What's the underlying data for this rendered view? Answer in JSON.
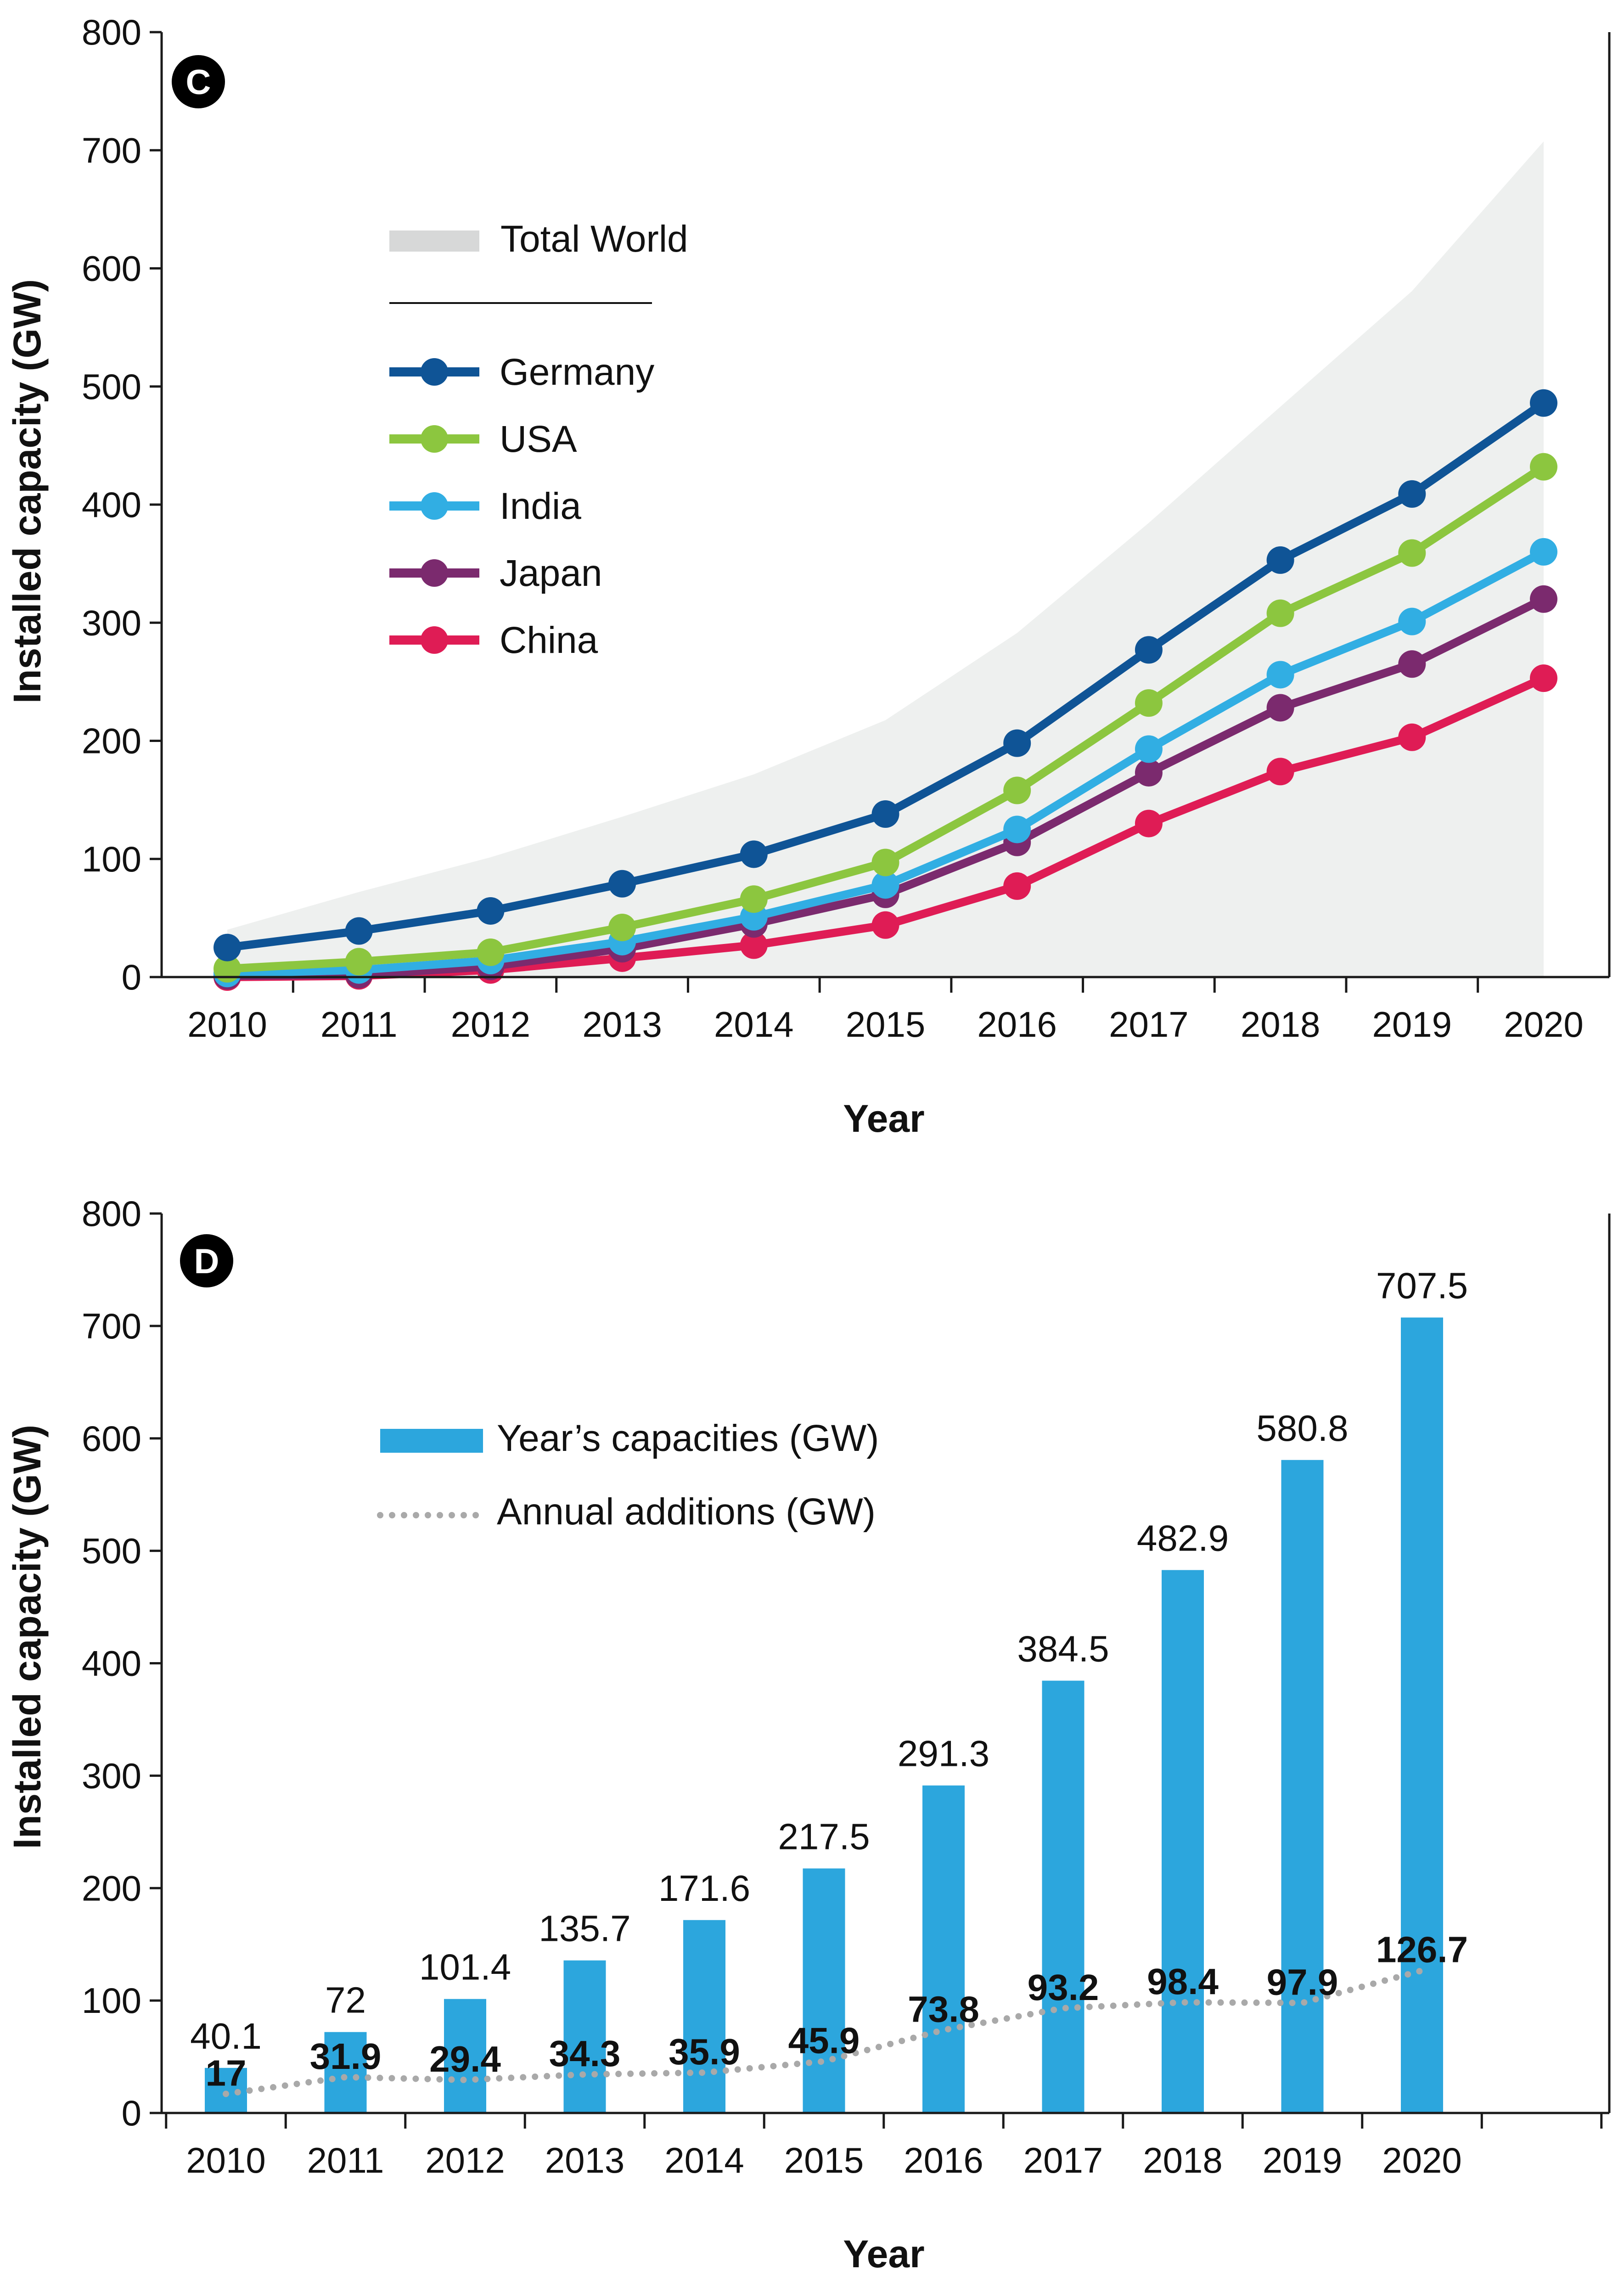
{
  "colors": {
    "total_world": "#eef0ef",
    "legend_total_world": "#d7d8d8",
    "Germany": "#0f5496",
    "USA": "#8cc63f",
    "India": "#31aee3",
    "Japan": "#7b2a6e",
    "China": "#df1c55",
    "bars": "#2ca6dd",
    "additions": "#a9a9a9",
    "axis": "#1a1a1a"
  },
  "chart_data": [
    {
      "type": "line",
      "panel": "C",
      "title": "",
      "xlabel": "Year",
      "ylabel": "Installed capacity (GW)",
      "ylim": [
        0,
        800
      ],
      "yticks": [
        "0",
        "100",
        "200",
        "300",
        "400",
        "500",
        "600",
        "700",
        "800"
      ],
      "x": [
        "2010",
        "2011",
        "2012",
        "2013",
        "2014",
        "2015",
        "2016",
        "2017",
        "2018",
        "2019",
        "2020"
      ],
      "area": {
        "name": "Total World",
        "values": [
          40.1,
          72,
          101.4,
          135.7,
          171.6,
          217.5,
          291.3,
          384.5,
          482.9,
          580.8,
          707.5
        ]
      },
      "series": [
        {
          "name": "Germany",
          "values": [
            25,
            39,
            56,
            79,
            104,
            138,
            198,
            277,
            353,
            409,
            486
          ]
        },
        {
          "name": "USA",
          "values": [
            7,
            13,
            21,
            42,
            66,
            97,
            158,
            232,
            308,
            359,
            432
          ]
        },
        {
          "name": "India",
          "values": [
            3,
            6,
            14,
            30,
            51,
            78,
            125,
            193,
            256,
            301,
            360
          ]
        },
        {
          "name": "Japan",
          "values": [
            1,
            2,
            9,
            24,
            45,
            70,
            114,
            173,
            228,
            265,
            320
          ]
        },
        {
          "name": "China",
          "values": [
            0,
            1,
            6,
            16,
            27,
            44,
            77,
            130,
            174,
            203,
            253
          ]
        }
      ],
      "legend": {
        "area_label": "Total World",
        "placement": "top-left"
      }
    },
    {
      "type": "bar",
      "panel": "D",
      "title": "",
      "xlabel": "Year",
      "ylabel": "Installed capacity (GW)",
      "ylim": [
        0,
        800
      ],
      "yticks": [
        "0",
        "100",
        "200",
        "300",
        "400",
        "500",
        "600",
        "700",
        "800"
      ],
      "categories": [
        "2010",
        "2011",
        "2012",
        "2013",
        "2014",
        "2015",
        "2016",
        "2017",
        "2018",
        "2019",
        "2020"
      ],
      "series": [
        {
          "name": "Year’s capacities (GW)",
          "type": "bar",
          "values": [
            40.1,
            72,
            101.4,
            135.7,
            171.6,
            217.5,
            291.3,
            384.5,
            482.9,
            580.8,
            707.5
          ],
          "labels": [
            "40.1",
            "72",
            "101.4",
            "135.7",
            "171.6",
            "217.5",
            "291.3",
            "384.5",
            "482.9",
            "580.8",
            "707.5"
          ]
        },
        {
          "name": "Annual additions (GW)",
          "type": "line-dotted",
          "values": [
            17,
            31.9,
            29.4,
            34.3,
            35.9,
            45.9,
            73.8,
            93.2,
            98.4,
            97.9,
            126.7
          ],
          "labels": [
            "17",
            "31.9",
            "29.4",
            "34.3",
            "35.9",
            "45.9",
            "73.8",
            "93.2",
            "98.4",
            "97.9",
            "126.7"
          ]
        }
      ],
      "legend": {
        "placement": "top-left"
      }
    }
  ]
}
